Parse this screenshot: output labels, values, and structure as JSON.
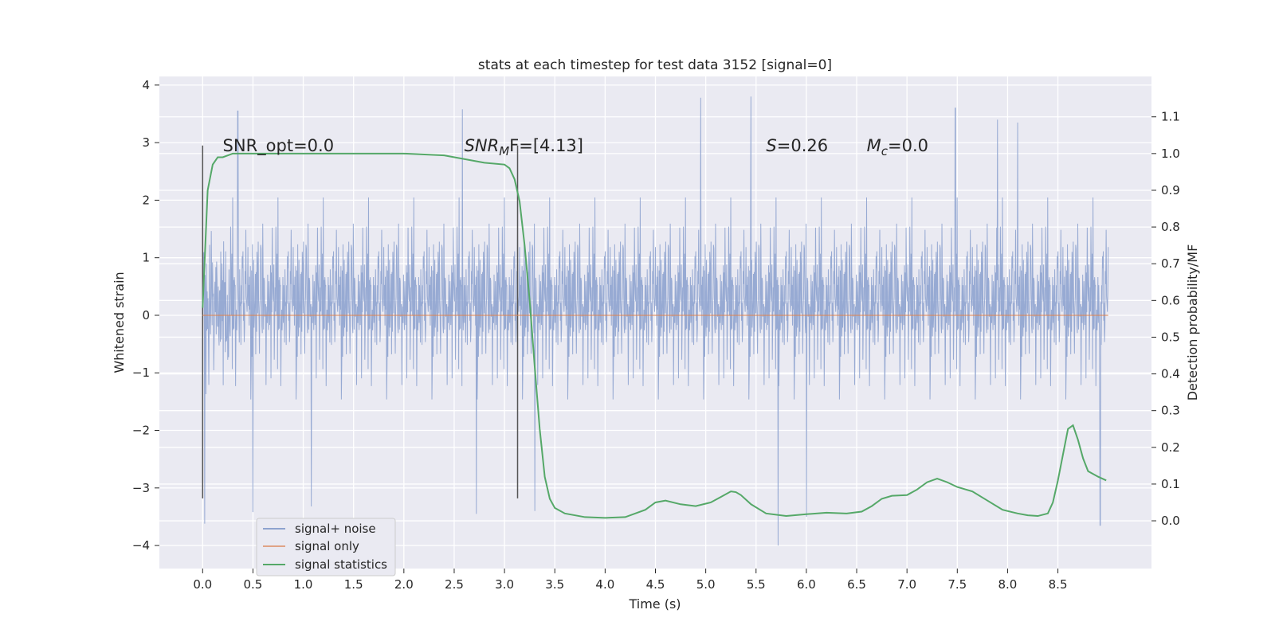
{
  "chart_data": {
    "type": "line",
    "title": "stats at each timestep for test data 3152 [signal=0]",
    "xlabel": "Time (s)",
    "ylabel": "Whitened strain",
    "y2label": "Detection probability/MF",
    "xlim": [
      -0.43,
      9.43
    ],
    "ylim": [
      -4.4,
      4.15
    ],
    "y2lim": [
      -0.13,
      1.21
    ],
    "x_ticks": [
      0.0,
      0.5,
      1.0,
      1.5,
      2.0,
      2.5,
      3.0,
      3.5,
      4.0,
      4.5,
      5.0,
      5.5,
      6.0,
      6.5,
      7.0,
      7.5,
      8.0,
      8.5
    ],
    "x_tick_labels": [
      "0.0",
      "0.5",
      "1.0",
      "1.5",
      "2.0",
      "2.5",
      "3.0",
      "3.5",
      "4.0",
      "4.5",
      "5.0",
      "5.5",
      "6.0",
      "6.5",
      "7.0",
      "7.5",
      "8.0",
      "8.5"
    ],
    "y_ticks": [
      4,
      3,
      2,
      1,
      0,
      -1,
      -2,
      -3,
      -4
    ],
    "y_tick_labels": [
      "4",
      "3",
      "2",
      "1",
      "0",
      "−1",
      "−2",
      "−3",
      "−4"
    ],
    "y2_ticks": [
      1.1,
      1.0,
      0.9,
      0.8,
      0.7,
      0.6,
      0.5,
      0.4,
      0.3,
      0.2,
      0.1,
      0.0
    ],
    "y2_tick_labels": [
      "1.1",
      "1.0",
      "0.9",
      "0.8",
      "0.7",
      "0.6",
      "0.5",
      "0.4",
      "0.3",
      "0.2",
      "0.1",
      "0.0"
    ],
    "grid": true,
    "legend_position": "lower-left",
    "annotations": [
      {
        "text": "SNR_opt=0.0",
        "x": 0.2,
        "y": 2.85
      },
      {
        "text": "SNR",
        "sub": "M",
        "text2": "F=[4.13]",
        "italic": true,
        "x": 2.6,
        "y": 2.85
      },
      {
        "text": "S",
        "text2": "=0.26",
        "italic": true,
        "x": 5.6,
        "y": 2.85
      },
      {
        "text": "M",
        "sub": "c",
        "text2": "=0.0",
        "italic": true,
        "x": 6.6,
        "y": 2.85
      }
    ],
    "vertical_lines": [
      0.0,
      3.13
    ],
    "series": [
      {
        "name": "signal+ noise",
        "color": "#8ea3cf",
        "axis": "left",
        "t_range": [
          0.0,
          9.0
        ],
        "typical_range": [
          -2.6,
          2.6
        ],
        "extremes": [
          {
            "x": 0.02,
            "y": -3.62
          },
          {
            "x": 0.35,
            "y": 3.55
          },
          {
            "x": 0.5,
            "y": -3.42
          },
          {
            "x": 1.08,
            "y": -3.32
          },
          {
            "x": 2.58,
            "y": 3.58
          },
          {
            "x": 2.72,
            "y": -3.45
          },
          {
            "x": 3.3,
            "y": -3.4
          },
          {
            "x": 4.95,
            "y": 3.78
          },
          {
            "x": 5.45,
            "y": 3.8
          },
          {
            "x": 5.72,
            "y": -4.0
          },
          {
            "x": 6.0,
            "y": -3.5
          },
          {
            "x": 7.48,
            "y": 3.6
          },
          {
            "x": 7.9,
            "y": 3.4
          },
          {
            "x": 8.1,
            "y": 3.35
          },
          {
            "x": 8.92,
            "y": -3.65
          }
        ]
      },
      {
        "name": "signal only",
        "color": "#dd8452",
        "axis": "left",
        "x": [
          0.0,
          9.0
        ],
        "y": [
          0.0,
          0.0
        ]
      },
      {
        "name": "signal statistics",
        "color": "#55a868",
        "axis": "right",
        "x": [
          0.0,
          0.05,
          0.1,
          0.15,
          0.2,
          0.3,
          0.5,
          1.0,
          1.5,
          2.0,
          2.4,
          2.6,
          2.8,
          3.0,
          3.05,
          3.1,
          3.15,
          3.2,
          3.25,
          3.3,
          3.35,
          3.4,
          3.45,
          3.5,
          3.6,
          3.8,
          4.0,
          4.2,
          4.4,
          4.5,
          4.6,
          4.75,
          4.9,
          5.05,
          5.15,
          5.25,
          5.3,
          5.35,
          5.45,
          5.6,
          5.8,
          6.0,
          6.2,
          6.4,
          6.55,
          6.65,
          6.75,
          6.85,
          7.0,
          7.1,
          7.2,
          7.3,
          7.4,
          7.5,
          7.65,
          7.8,
          7.95,
          8.1,
          8.2,
          8.3,
          8.4,
          8.45,
          8.5,
          8.55,
          8.6,
          8.65,
          8.7,
          8.75,
          8.8,
          8.9,
          8.98
        ],
        "y": [
          0.58,
          0.9,
          0.97,
          0.99,
          0.99,
          1.0,
          1.0,
          1.0,
          1.0,
          1.0,
          0.995,
          0.985,
          0.975,
          0.97,
          0.96,
          0.93,
          0.87,
          0.75,
          0.6,
          0.42,
          0.25,
          0.12,
          0.06,
          0.035,
          0.02,
          0.01,
          0.008,
          0.01,
          0.03,
          0.05,
          0.055,
          0.045,
          0.04,
          0.05,
          0.065,
          0.08,
          0.078,
          0.07,
          0.045,
          0.02,
          0.013,
          0.018,
          0.022,
          0.02,
          0.025,
          0.04,
          0.06,
          0.068,
          0.07,
          0.085,
          0.105,
          0.115,
          0.105,
          0.092,
          0.08,
          0.055,
          0.03,
          0.02,
          0.015,
          0.013,
          0.02,
          0.05,
          0.11,
          0.18,
          0.25,
          0.26,
          0.22,
          0.17,
          0.135,
          0.12,
          0.11
        ]
      }
    ]
  }
}
